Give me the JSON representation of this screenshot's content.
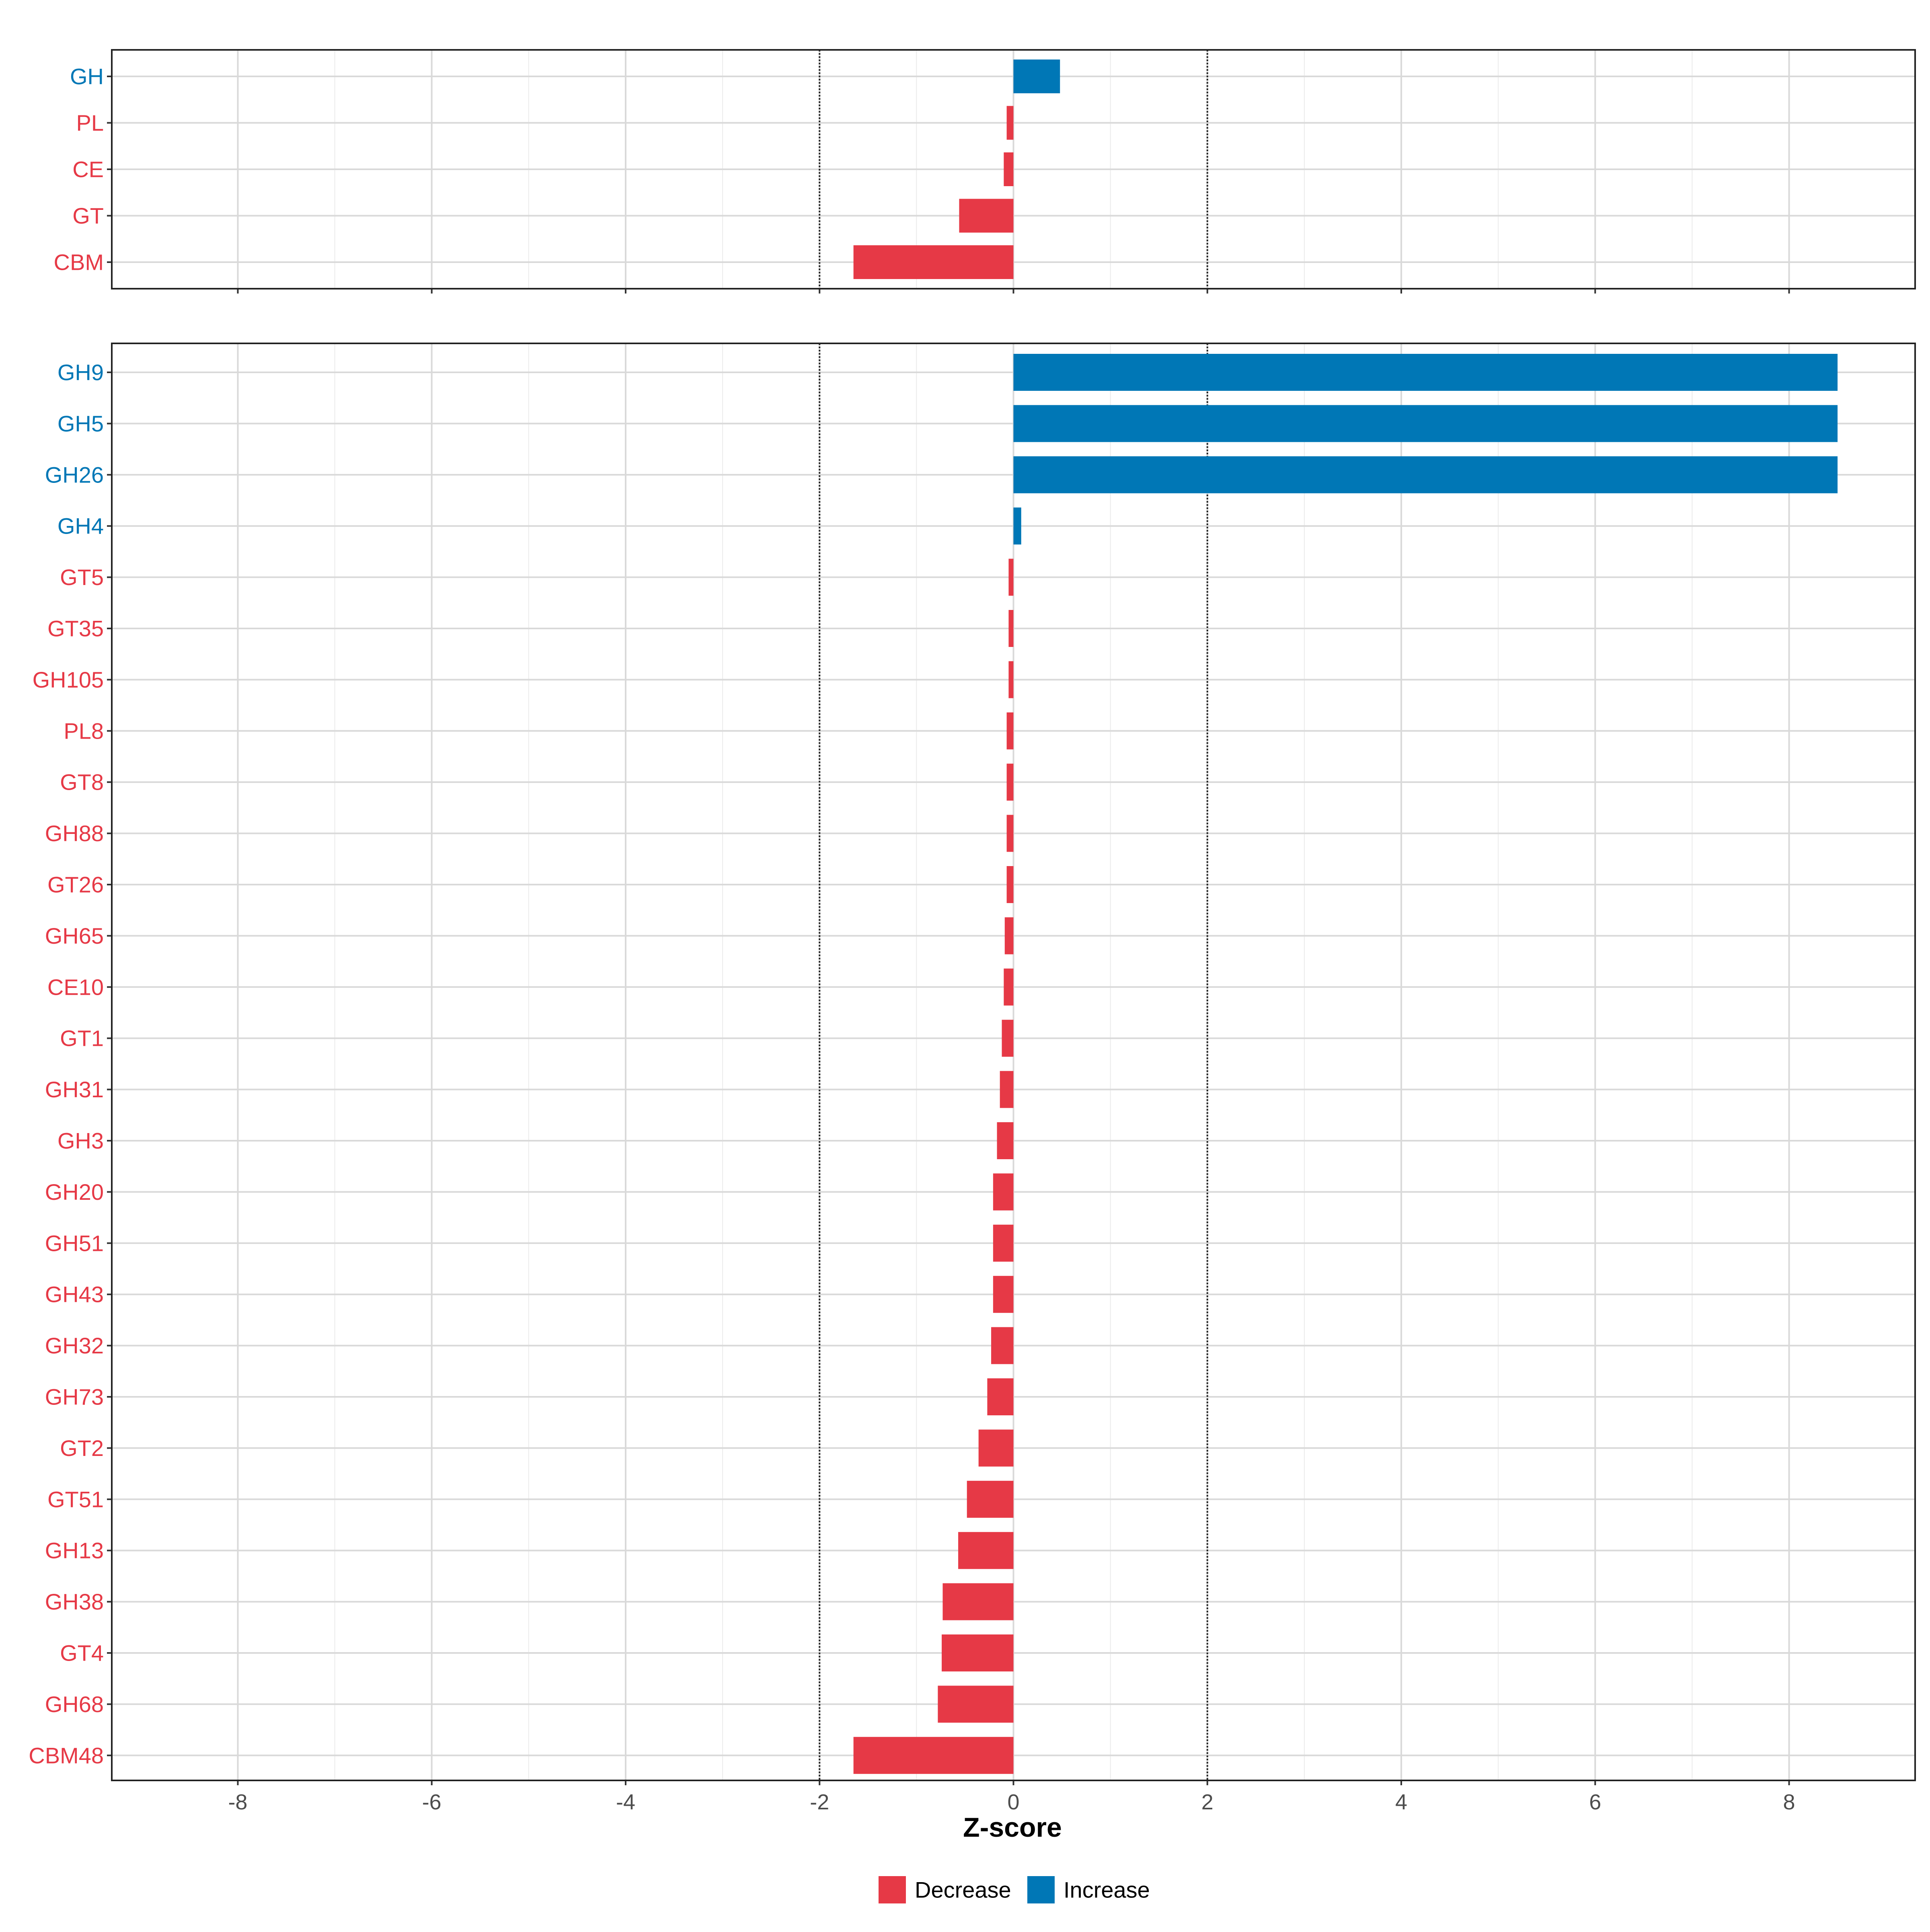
{
  "chart_data": {
    "type": "bar",
    "orientation": "horizontal",
    "xlabel": "Z-score",
    "xlim": [
      -9.3,
      9.3
    ],
    "xticks": [
      -8,
      -6,
      -4,
      -2,
      0,
      2,
      4,
      6,
      8
    ],
    "xtick_labels": [
      "-8",
      "-6",
      "-4",
      "-2",
      "0",
      "2",
      "4",
      "6",
      "8"
    ],
    "threshold_lines": [
      -2,
      2
    ],
    "grid": true,
    "legend": {
      "placement": "bottom",
      "entries": [
        {
          "label": "Decrease",
          "color": "#e63946"
        },
        {
          "label": "Increase",
          "color": "#0077b6"
        }
      ]
    },
    "colors": {
      "Decrease": "#e63946",
      "Increase": "#0077b6"
    },
    "panels": [
      {
        "categories": [
          "GH",
          "PL",
          "CE",
          "GT",
          "CBM"
        ],
        "values": [
          0.48,
          -0.07,
          -0.1,
          -0.56,
          -1.65
        ],
        "directions": [
          "Increase",
          "Decrease",
          "Decrease",
          "Decrease",
          "Decrease"
        ]
      },
      {
        "categories": [
          "GH9",
          "GH5",
          "GH26",
          "GH4",
          "GT5",
          "GT35",
          "GH105",
          "PL8",
          "GT8",
          "GH88",
          "GT26",
          "GH65",
          "CE10",
          "GT1",
          "GH31",
          "GH3",
          "GH20",
          "GH51",
          "GH43",
          "GH32",
          "GH73",
          "GT2",
          "GT51",
          "GH13",
          "GH38",
          "GT4",
          "GH68",
          "CBM48"
        ],
        "values": [
          8.5,
          8.5,
          8.5,
          0.08,
          -0.05,
          -0.05,
          -0.05,
          -0.07,
          -0.07,
          -0.07,
          -0.07,
          -0.09,
          -0.1,
          -0.12,
          -0.14,
          -0.17,
          -0.21,
          -0.21,
          -0.21,
          -0.23,
          -0.27,
          -0.36,
          -0.48,
          -0.57,
          -0.73,
          -0.74,
          -0.78,
          -1.65
        ],
        "directions": [
          "Increase",
          "Increase",
          "Increase",
          "Increase",
          "Decrease",
          "Decrease",
          "Decrease",
          "Decrease",
          "Decrease",
          "Decrease",
          "Decrease",
          "Decrease",
          "Decrease",
          "Decrease",
          "Decrease",
          "Decrease",
          "Decrease",
          "Decrease",
          "Decrease",
          "Decrease",
          "Decrease",
          "Decrease",
          "Decrease",
          "Decrease",
          "Decrease",
          "Decrease",
          "Decrease",
          "Decrease"
        ]
      }
    ]
  }
}
